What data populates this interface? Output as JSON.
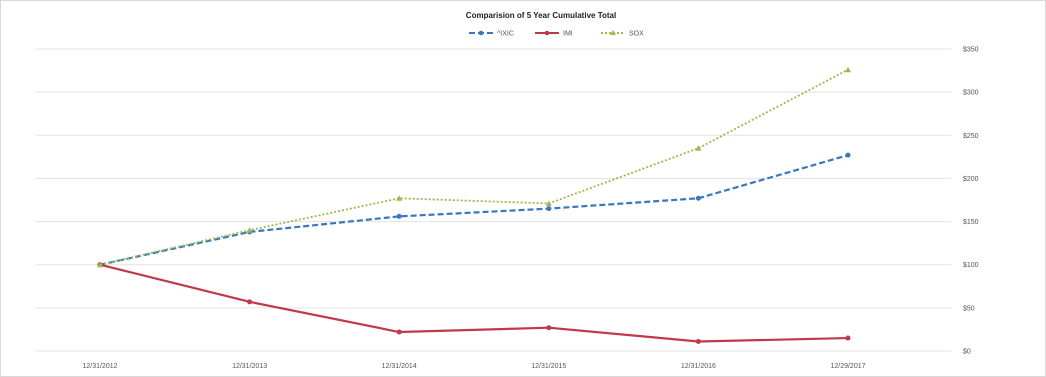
{
  "chart_data": {
    "type": "line",
    "title": "Comparision of 5 Year Cumulative Total",
    "xlabel": "",
    "ylabel": "",
    "categories": [
      "12/31/2012",
      "12/31/2013",
      "12/31/2014",
      "12/31/2015",
      "12/31/2016",
      "12/29/2017"
    ],
    "y_ticks": [
      "$0",
      "$50",
      "$100",
      "$150",
      "$200",
      "$250",
      "$300",
      "$350"
    ],
    "ylim": [
      0,
      350
    ],
    "y_axis_position": "right",
    "grid": true,
    "legend_position": "top",
    "series": [
      {
        "name": "^IXIC",
        "values": [
          100,
          138,
          156,
          165,
          177,
          227
        ],
        "color": "#3a77c0",
        "dash": "dashed",
        "marker": "circle"
      },
      {
        "name": "IMI",
        "values": [
          100,
          57,
          22,
          27,
          11,
          15
        ],
        "color": "#c0394b",
        "dash": "solid",
        "marker": "circle"
      },
      {
        "name": "SOX",
        "values": [
          100,
          140,
          177,
          171,
          235,
          326
        ],
        "color": "#9cb94d",
        "dash": "dotted",
        "marker": "triangle"
      }
    ]
  }
}
